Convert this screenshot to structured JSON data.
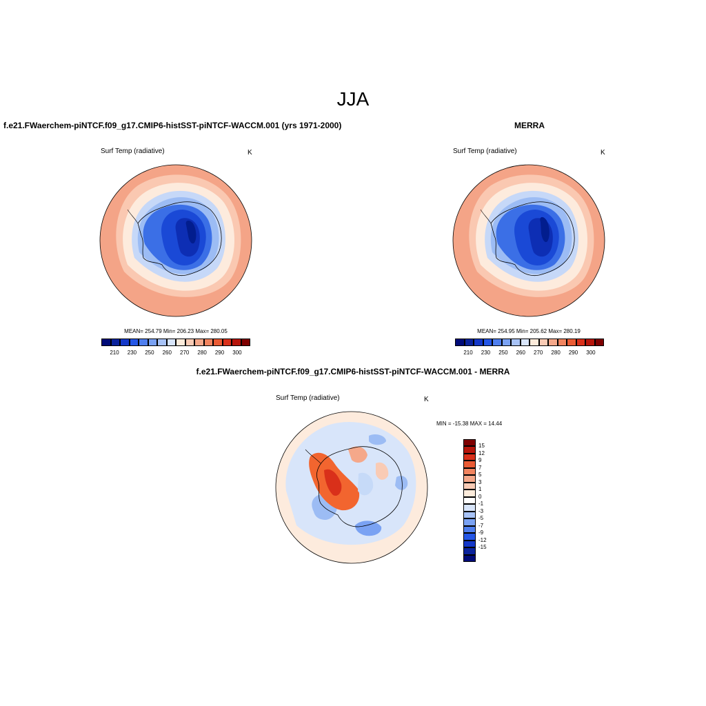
{
  "title": "JJA",
  "colors": {
    "ocean_warm": "#f4a487",
    "ocean_mid": "#fac8b1",
    "ice_edge": "#fdebdd",
    "cold_1": "#c6d8f8",
    "cold_2": "#9cbcf4",
    "cold_3": "#6f9df0",
    "cold_4": "#3b6fe6",
    "cold_5": "#1a49d6",
    "cold_6": "#0d2eb4",
    "cold_7": "#021d8e",
    "diff_warm": "#f2652f",
    "diff_neutral": "#fdebdd",
    "diff_cool": "#c6daf8"
  },
  "panels": [
    {
      "title": "f.e21.FWaerchem-piNTCF.f09_g17.CMIP6-histSST-piNTCF-WACCM.001 (yrs 1971-2000)",
      "variable": "Surf Temp (radiative)",
      "units": "K",
      "stats": "MEAN= 254.79  Min= 206.23  Max= 280.05",
      "colorbar": {
        "colors": [
          "#000b78",
          "#0b239c",
          "#1438c8",
          "#2456e6",
          "#4f7fef",
          "#7aa2f3",
          "#a8c3f6",
          "#d8e5fa",
          "#fcebdb",
          "#f9cbb5",
          "#f5a88a",
          "#f1845f",
          "#ea5b34",
          "#d9301a",
          "#b6150b",
          "#7e0000"
        ],
        "labels": [
          "210",
          "230",
          "250",
          "260",
          "270",
          "280",
          "290",
          "300"
        ]
      }
    },
    {
      "title": "MERRA",
      "variable": "Surf Temp (radiative)",
      "units": "K",
      "stats": "MEAN= 254.95  Min= 205.62  Max= 280.19",
      "colorbar": {
        "colors": [
          "#000b78",
          "#0b239c",
          "#1438c8",
          "#2456e6",
          "#4f7fef",
          "#7aa2f3",
          "#a8c3f6",
          "#d8e5fa",
          "#fcebdb",
          "#f9cbb5",
          "#f5a88a",
          "#f1845f",
          "#ea5b34",
          "#d9301a",
          "#b6150b",
          "#7e0000"
        ],
        "labels": [
          "210",
          "230",
          "250",
          "260",
          "270",
          "280",
          "290",
          "300"
        ]
      }
    }
  ],
  "diff_panel": {
    "title": "f.e21.FWaerchem-piNTCF.f09_g17.CMIP6-histSST-piNTCF-WACCM.001 - MERRA",
    "variable": "Surf Temp (radiative)",
    "units": "K",
    "stats": "MIN = -15.38 MAX =  14.44",
    "colorbar": {
      "colors": [
        "#7e0000",
        "#b6150b",
        "#d9301a",
        "#ea5b34",
        "#f1845f",
        "#f5a88a",
        "#f9cbb5",
        "#fcebdb",
        "#ffffff",
        "#d8e5fa",
        "#a8c3f6",
        "#7aa2f3",
        "#4f7fef",
        "#2456e6",
        "#1438c8",
        "#0b239c",
        "#000b78"
      ],
      "labels": [
        "15",
        "12",
        "9",
        "7",
        "5",
        "3",
        "1",
        "0",
        "-1",
        "-3",
        "-5",
        "-7",
        "-9",
        "-12",
        "-15"
      ]
    }
  }
}
